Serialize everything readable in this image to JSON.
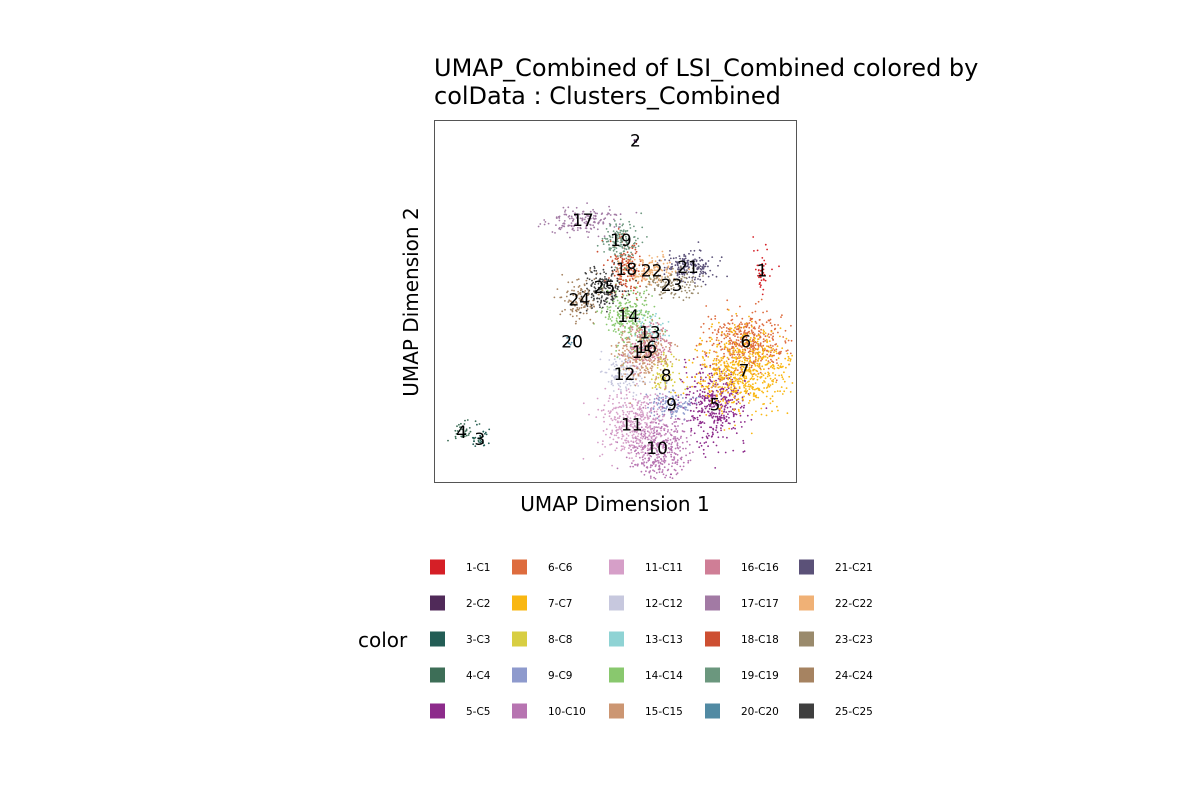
{
  "chart_data": {
    "type": "scatter",
    "title_line1": "UMAP_Combined of LSI_Combined  colored by",
    "title_line2": "colData :  Clusters_Combined",
    "xlabel": "UMAP Dimension 1",
    "ylabel": "UMAP Dimension 2",
    "xlim": [
      0,
      100
    ],
    "ylim": [
      0,
      100
    ],
    "grid": false,
    "legend_title": "color",
    "legend_placement": "bottom",
    "clusters": [
      {
        "id": "1",
        "name": "1-C1",
        "color": "#D51F26",
        "cx": 90.5,
        "cy": 58.5
      },
      {
        "id": "2",
        "name": "2-C2",
        "color": "#502A59",
        "cx": 55.5,
        "cy": 94.5
      },
      {
        "id": "3",
        "name": "3-C3",
        "color": "#235D55",
        "cx": 12.5,
        "cy": 12.0
      },
      {
        "id": "4",
        "name": "4-C4",
        "color": "#3D6E57",
        "cx": 7.5,
        "cy": 14.0
      },
      {
        "id": "5",
        "name": "5-C5",
        "color": "#8D2B8B",
        "cx": 77.5,
        "cy": 21.5
      },
      {
        "id": "6",
        "name": "6-C6",
        "color": "#DE6C3E",
        "cx": 86.0,
        "cy": 39.0
      },
      {
        "id": "7",
        "name": "7-C7",
        "color": "#F9B712",
        "cx": 85.5,
        "cy": 31.0
      },
      {
        "id": "8",
        "name": "8-C8",
        "color": "#D8CE42",
        "cx": 64.0,
        "cy": 29.5
      },
      {
        "id": "9",
        "name": "9-C9",
        "color": "#8E9ACD",
        "cx": 65.5,
        "cy": 21.5
      },
      {
        "id": "10",
        "name": "10-C10",
        "color": "#B774B1",
        "cx": 61.5,
        "cy": 9.5
      },
      {
        "id": "11",
        "name": "11-C11",
        "color": "#D69FC8",
        "cx": 54.5,
        "cy": 16.0
      },
      {
        "id": "12",
        "name": "12-C12",
        "color": "#C7C8DE",
        "cx": 52.5,
        "cy": 30.0
      },
      {
        "id": "13",
        "name": "13-C13",
        "color": "#8FD3D4",
        "cx": 59.5,
        "cy": 41.5
      },
      {
        "id": "14",
        "name": "14-C14",
        "color": "#89C86E",
        "cx": 53.5,
        "cy": 46.0
      },
      {
        "id": "15",
        "name": "15-C15",
        "color": "#CC9672",
        "cx": 57.5,
        "cy": 36.0
      },
      {
        "id": "16",
        "name": "16-C16",
        "color": "#CF7E96",
        "cx": 58.5,
        "cy": 37.5
      },
      {
        "id": "17",
        "name": "17-C17",
        "color": "#A27AA4",
        "cx": 41.0,
        "cy": 72.5
      },
      {
        "id": "18",
        "name": "18-C18",
        "color": "#CD4F32",
        "cx": 53.0,
        "cy": 59.0
      },
      {
        "id": "19",
        "name": "19-C19",
        "color": "#6B977E",
        "cx": 51.5,
        "cy": 67.0
      },
      {
        "id": "20",
        "name": "20-C20",
        "color": "#518AA3",
        "cx": 38.0,
        "cy": 39.0
      },
      {
        "id": "21",
        "name": "21-C21",
        "color": "#5B5178",
        "cx": 70.0,
        "cy": 59.5
      },
      {
        "id": "22",
        "name": "22-C22",
        "color": "#F0B176",
        "cx": 60.0,
        "cy": 58.5
      },
      {
        "id": "23",
        "name": "23-C23",
        "color": "#9A8A6C",
        "cx": 65.5,
        "cy": 54.5
      },
      {
        "id": "24",
        "name": "24-C24",
        "color": "#A68361",
        "cx": 40.0,
        "cy": 50.5
      },
      {
        "id": "25",
        "name": "25-C25",
        "color": "#3F3F3F",
        "cx": 47.0,
        "cy": 54.0
      }
    ]
  }
}
